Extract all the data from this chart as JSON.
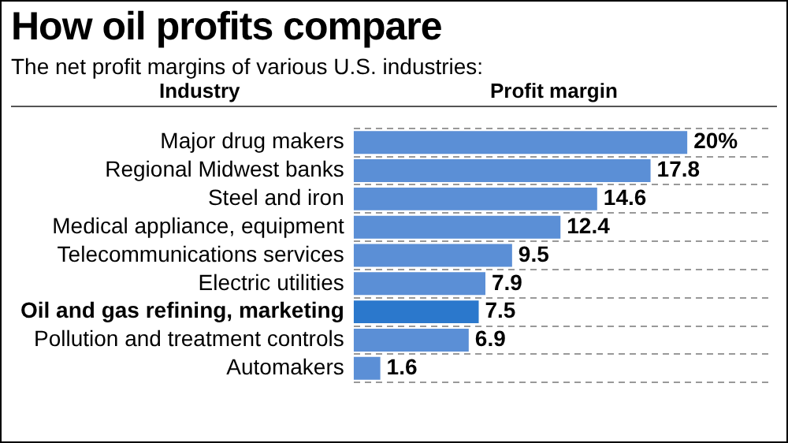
{
  "chart_data": {
    "type": "bar",
    "orientation": "horizontal",
    "title": "How oil profits compare",
    "subtitle": "The net profit margins of various U.S. industries:",
    "ylabel": "Industry",
    "xlabel": "Profit margin",
    "categories": [
      "Major drug makers",
      "Regional Midwest banks",
      "Steel and iron",
      "Medical appliance, equipment",
      "Telecommunications services",
      "Electric utilities",
      "Oil and gas refining, marketing",
      "Pollution and treatment controls",
      "Automakers"
    ],
    "values": [
      20,
      17.8,
      14.6,
      12.4,
      9.5,
      7.9,
      7.5,
      6.9,
      1.6
    ],
    "colors": [
      "#5b8fd6",
      "#5b8fd6",
      "#5b8fd6",
      "#5b8fd6",
      "#5b8fd6",
      "#5b8fd6",
      "#2b78cc",
      "#5b8fd6",
      "#5b8fd6"
    ],
    "value_labels": [
      "20%",
      "17.8",
      "14.6",
      "12.4",
      "9.5",
      "7.9",
      "7.5",
      "6.9",
      "1.6"
    ],
    "grid": "y",
    "legend": false
  }
}
